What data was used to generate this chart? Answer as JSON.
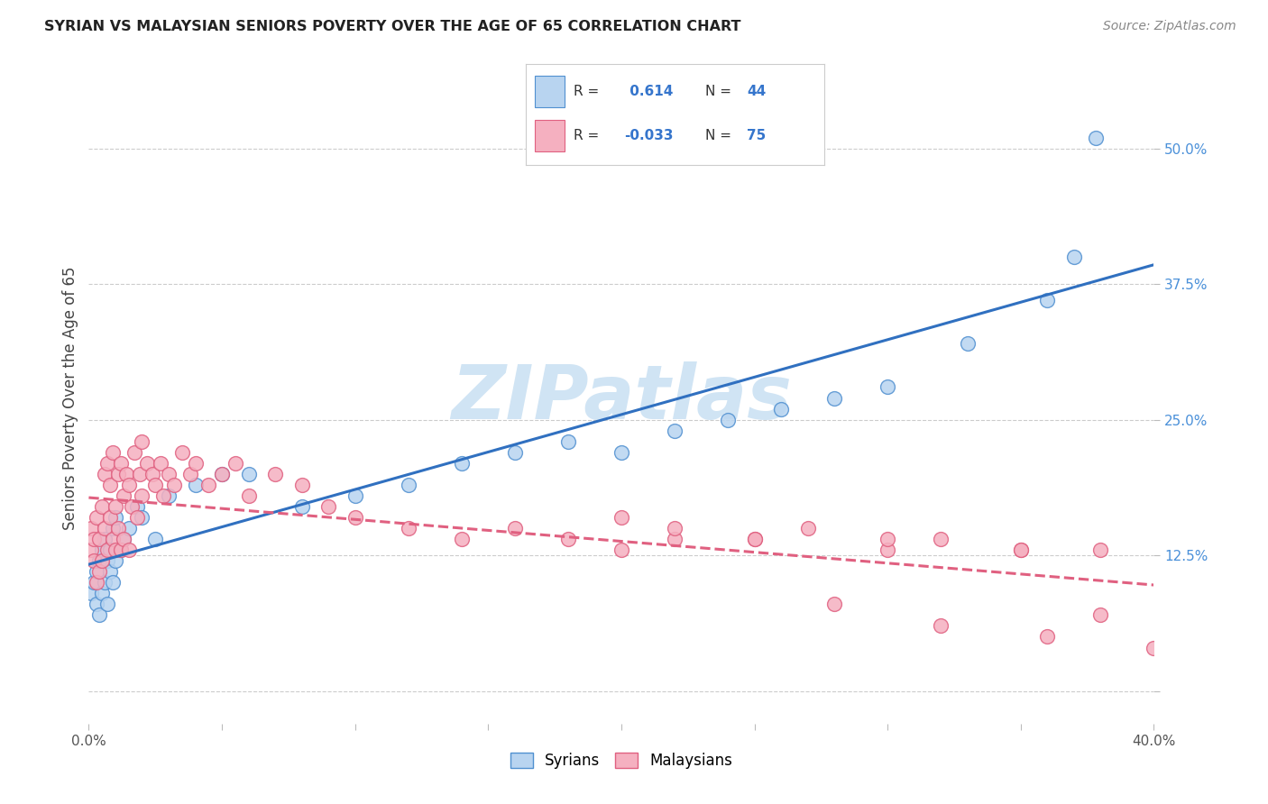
{
  "title": "SYRIAN VS MALAYSIAN SENIORS POVERTY OVER THE AGE OF 65 CORRELATION CHART",
  "source": "Source: ZipAtlas.com",
  "ylabel": "Seniors Poverty Over the Age of 65",
  "syrian_R": 0.614,
  "syrian_N": 44,
  "malaysian_R": -0.033,
  "malaysian_N": 75,
  "xlim": [
    0.0,
    0.4
  ],
  "ylim": [
    -0.03,
    0.57
  ],
  "yticks": [
    0.0,
    0.125,
    0.25,
    0.375,
    0.5
  ],
  "ytick_labels": [
    "",
    "12.5%",
    "25.0%",
    "37.5%",
    "50.0%"
  ],
  "xtick_pos": [
    0.0,
    0.05,
    0.1,
    0.15,
    0.2,
    0.25,
    0.3,
    0.35,
    0.4
  ],
  "xtick_labels": [
    "0.0%",
    "",
    "",
    "",
    "",
    "",
    "",
    "",
    "40.0%"
  ],
  "syrian_fill": "#b8d4f0",
  "syrian_edge": "#5090d0",
  "malaysian_fill": "#f5b0c0",
  "malaysian_edge": "#e06080",
  "syrian_line_color": "#3070c0",
  "malaysian_line_color": "#e06080",
  "watermark": "ZIPatlas",
  "watermark_color": "#d0e4f4",
  "background_color": "#ffffff",
  "grid_color": "#cccccc",
  "title_color": "#222222",
  "source_color": "#888888",
  "ylabel_color": "#444444",
  "right_tick_color": "#4a90d9",
  "legend_R_color": "#3575cc",
  "syrian_x": [
    0.001,
    0.002,
    0.003,
    0.003,
    0.004,
    0.004,
    0.005,
    0.005,
    0.006,
    0.006,
    0.007,
    0.007,
    0.008,
    0.008,
    0.009,
    0.009,
    0.01,
    0.01,
    0.012,
    0.013,
    0.015,
    0.018,
    0.02,
    0.025,
    0.03,
    0.04,
    0.05,
    0.06,
    0.08,
    0.1,
    0.12,
    0.14,
    0.16,
    0.18,
    0.2,
    0.22,
    0.24,
    0.26,
    0.28,
    0.3,
    0.33,
    0.36,
    0.37,
    0.378
  ],
  "syrian_y": [
    0.09,
    0.1,
    0.08,
    0.11,
    0.07,
    0.12,
    0.13,
    0.09,
    0.14,
    0.1,
    0.12,
    0.08,
    0.11,
    0.13,
    0.15,
    0.1,
    0.16,
    0.12,
    0.13,
    0.14,
    0.15,
    0.17,
    0.16,
    0.14,
    0.18,
    0.19,
    0.2,
    0.2,
    0.17,
    0.18,
    0.19,
    0.21,
    0.22,
    0.23,
    0.22,
    0.24,
    0.25,
    0.26,
    0.27,
    0.28,
    0.32,
    0.36,
    0.4,
    0.51
  ],
  "malaysian_x": [
    0.001,
    0.001,
    0.002,
    0.002,
    0.003,
    0.003,
    0.004,
    0.004,
    0.005,
    0.005,
    0.006,
    0.006,
    0.007,
    0.007,
    0.008,
    0.008,
    0.009,
    0.009,
    0.01,
    0.01,
    0.011,
    0.011,
    0.012,
    0.012,
    0.013,
    0.013,
    0.014,
    0.015,
    0.015,
    0.016,
    0.017,
    0.018,
    0.019,
    0.02,
    0.02,
    0.022,
    0.024,
    0.025,
    0.027,
    0.028,
    0.03,
    0.032,
    0.035,
    0.038,
    0.04,
    0.045,
    0.05,
    0.055,
    0.06,
    0.07,
    0.08,
    0.09,
    0.1,
    0.12,
    0.14,
    0.16,
    0.18,
    0.2,
    0.22,
    0.25,
    0.27,
    0.3,
    0.32,
    0.35,
    0.2,
    0.22,
    0.25,
    0.3,
    0.35,
    0.38,
    0.28,
    0.32,
    0.36,
    0.38,
    0.4
  ],
  "malaysian_y": [
    0.13,
    0.15,
    0.12,
    0.14,
    0.1,
    0.16,
    0.11,
    0.14,
    0.17,
    0.12,
    0.15,
    0.2,
    0.13,
    0.21,
    0.16,
    0.19,
    0.14,
    0.22,
    0.13,
    0.17,
    0.2,
    0.15,
    0.21,
    0.13,
    0.18,
    0.14,
    0.2,
    0.19,
    0.13,
    0.17,
    0.22,
    0.16,
    0.2,
    0.18,
    0.23,
    0.21,
    0.2,
    0.19,
    0.21,
    0.18,
    0.2,
    0.19,
    0.22,
    0.2,
    0.21,
    0.19,
    0.2,
    0.21,
    0.18,
    0.2,
    0.19,
    0.17,
    0.16,
    0.15,
    0.14,
    0.15,
    0.14,
    0.13,
    0.14,
    0.14,
    0.15,
    0.13,
    0.14,
    0.13,
    0.16,
    0.15,
    0.14,
    0.14,
    0.13,
    0.13,
    0.08,
    0.06,
    0.05,
    0.07,
    0.04
  ]
}
